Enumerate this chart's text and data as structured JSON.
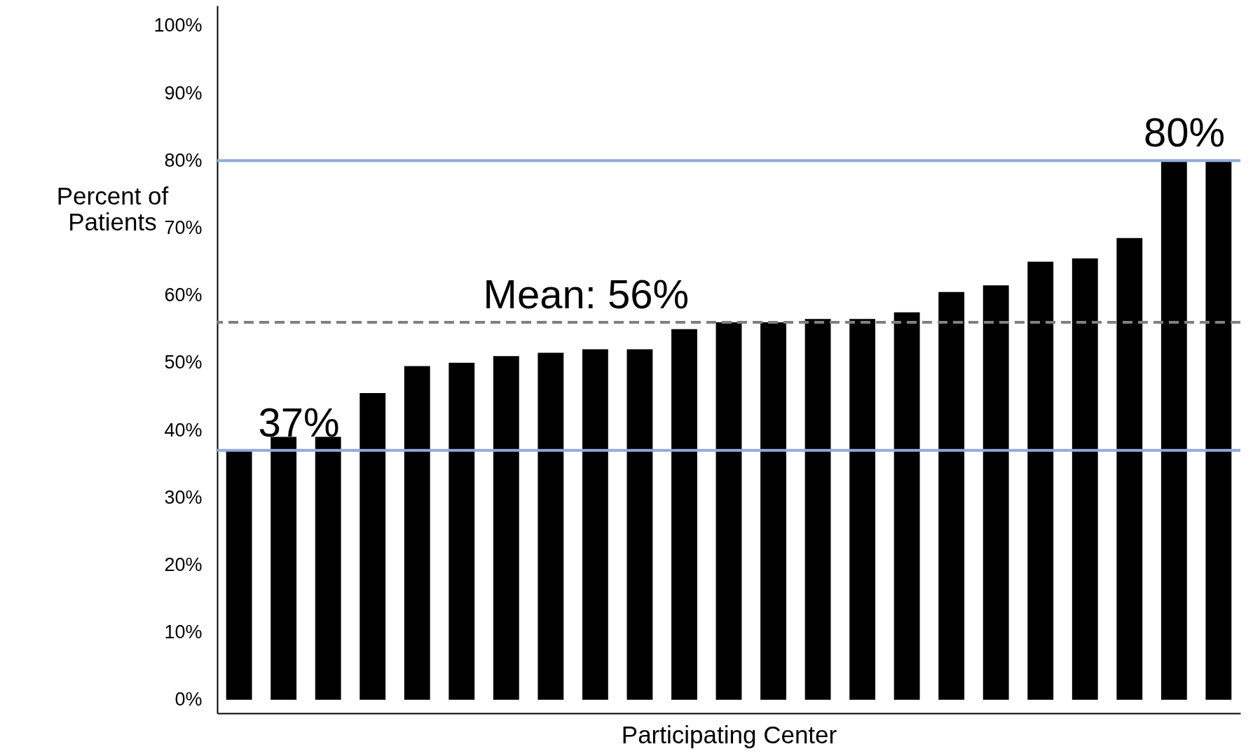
{
  "chart_data": {
    "type": "bar",
    "xlabel": "Participating Center",
    "ylabel": "Percent of Patients",
    "categories": [
      null,
      null,
      null,
      null,
      null,
      null,
      null,
      null,
      null,
      null,
      null,
      null,
      null,
      null,
      null,
      null,
      null,
      null,
      null,
      null,
      null,
      null,
      null
    ],
    "values": [
      37,
      39,
      39,
      45.5,
      49.5,
      50,
      51,
      51.5,
      52,
      52,
      55,
      56,
      56,
      56.5,
      56.5,
      57.5,
      60.5,
      61.5,
      65,
      65.5,
      68.5,
      80,
      80
    ],
    "color": "#000000",
    "ylim": [
      -2,
      103
    ],
    "yticks": [
      {
        "value": 0,
        "label": "0%"
      },
      {
        "value": 10,
        "label": "10%"
      },
      {
        "value": 20,
        "label": "20%"
      },
      {
        "value": 30,
        "label": "30%"
      },
      {
        "value": 40,
        "label": "40%"
      },
      {
        "value": 50,
        "label": "50%"
      },
      {
        "value": 60,
        "label": "60%"
      },
      {
        "value": 70,
        "label": "70%"
      },
      {
        "value": 80,
        "label": "80%"
      },
      {
        "value": 90,
        "label": "90%"
      },
      {
        "value": 100,
        "label": "100%"
      }
    ],
    "tick_labels": "y",
    "grid": false,
    "ref_lines": [
      {
        "axis": "y",
        "value": 80,
        "label": "80%",
        "color": "#8faadc",
        "line_style": "solid"
      },
      {
        "axis": "y",
        "value": 56,
        "label": "Mean: 56%",
        "color": "#808080",
        "line_style": "dashed"
      },
      {
        "axis": "y",
        "value": 37,
        "label": "37%",
        "color": "#8faadc",
        "line_style": "solid"
      }
    ]
  }
}
